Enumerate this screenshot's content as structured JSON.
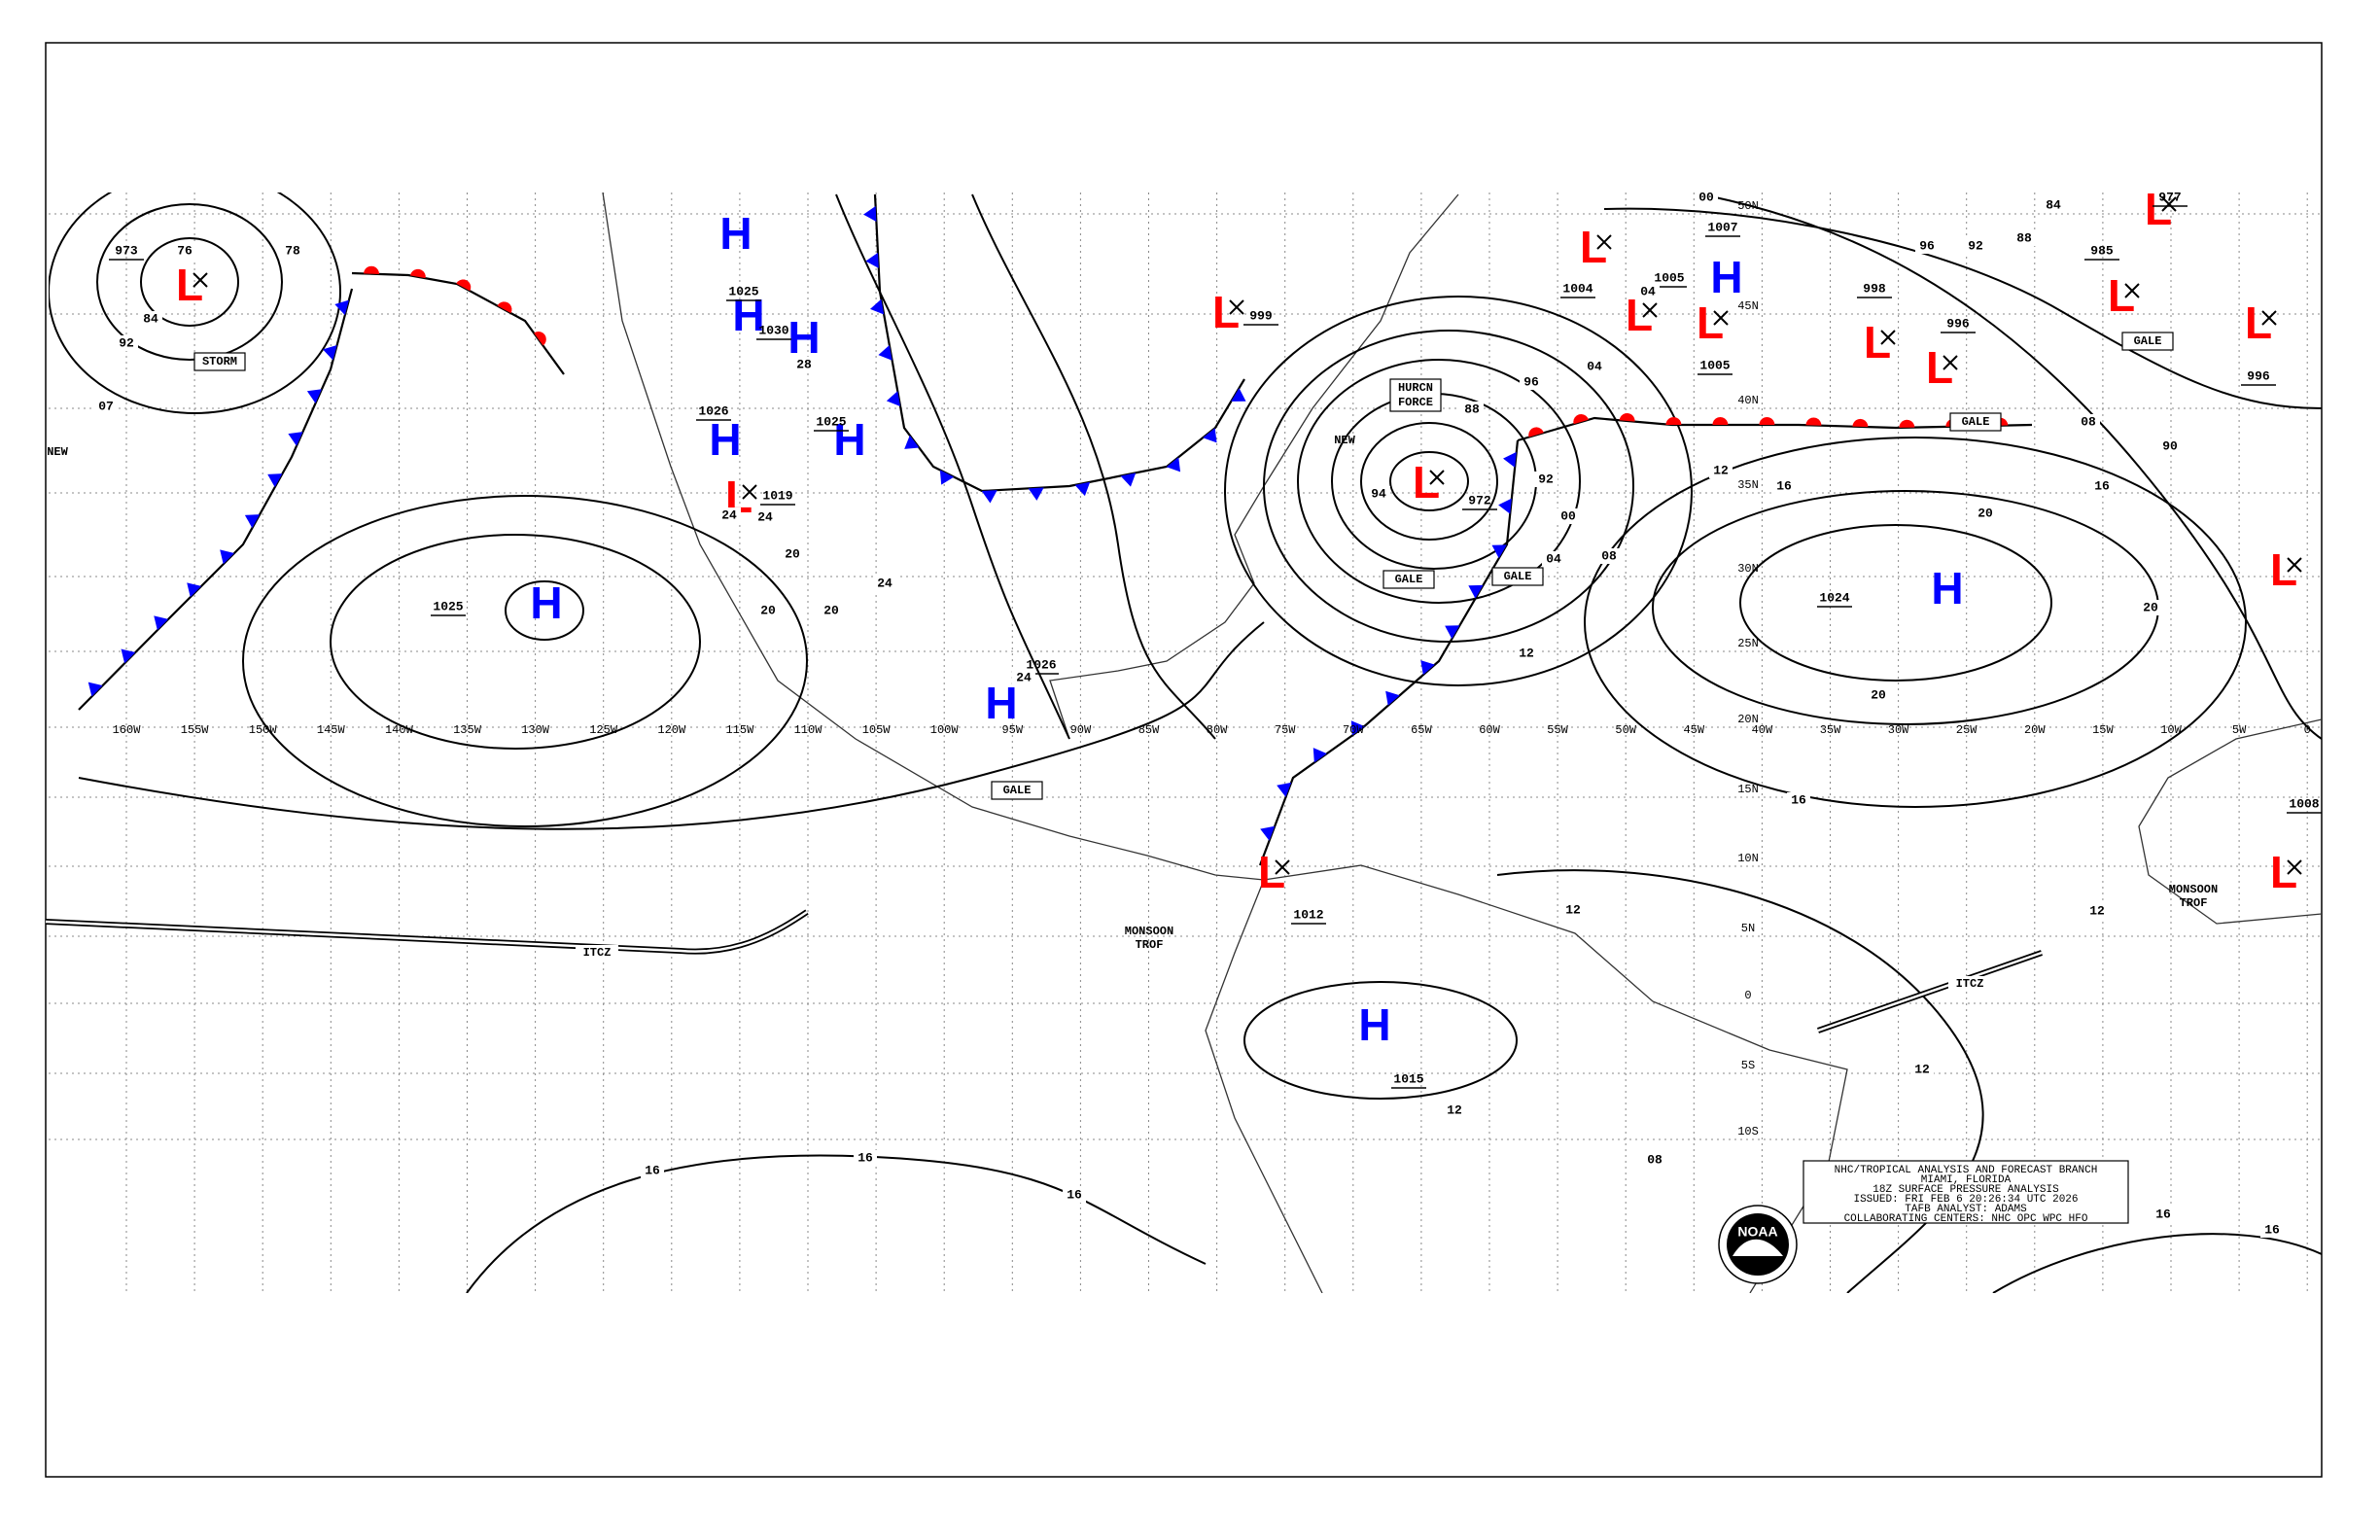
{
  "map": {
    "high_color": "#0000ff",
    "low_color": "#ff0000",
    "lon_labels": [
      "160W",
      "155W",
      "150W",
      "145W",
      "140W",
      "135W",
      "130W",
      "125W",
      "120W",
      "115W",
      "110W",
      "105W",
      "100W",
      "95W",
      "90W",
      "85W",
      "80W",
      "75W",
      "70W",
      "65W",
      "60W",
      "55W",
      "50W",
      "45W",
      "40W",
      "35W",
      "30W",
      "25W",
      "20W",
      "15W",
      "10W",
      "5W",
      "0"
    ],
    "lat_labels": [
      "50N",
      "45N",
      "40N",
      "35N",
      "30N",
      "25N",
      "20N",
      "15N",
      "10N",
      "5N",
      "0",
      "5S",
      "10S"
    ],
    "highs": [
      "H",
      "H",
      "H",
      "H",
      "H",
      "H",
      "H",
      "H",
      "H",
      "H"
    ],
    "lows": [
      "L",
      "L",
      "L",
      "L",
      "L",
      "L",
      "L",
      "L",
      "L",
      "L",
      "L",
      "L",
      "L",
      "L",
      "L"
    ],
    "pressure_labels": [
      "973",
      "1025",
      "1030",
      "1026",
      "1019",
      "1025",
      "1025",
      "1026",
      "999",
      "972",
      "1004",
      "1005",
      "1005",
      "1007",
      "998",
      "996",
      "985",
      "977",
      "996",
      "1024",
      "1008",
      "1012",
      "1015"
    ],
    "isobar_labels": [
      "76",
      "78",
      "84",
      "92",
      "07",
      "28",
      "24",
      "20",
      "20",
      "20",
      "24",
      "88",
      "92",
      "94",
      "96",
      "00",
      "04",
      "08",
      "12",
      "16",
      "20",
      "12",
      "20",
      "16",
      "04",
      "04",
      "00",
      "96",
      "92",
      "88",
      "84",
      "08",
      "16",
      "20",
      "90",
      "12",
      "12",
      "16",
      "16",
      "16",
      "12",
      "08",
      "16",
      "16",
      "12",
      "24",
      "24"
    ],
    "boxed_labels": [
      "STORM",
      "GALE",
      "HURCN",
      "FORCE",
      "GALE",
      "GALE",
      "GALE",
      "GALE"
    ],
    "labels": [
      "NEW",
      "NEW",
      "MONSOON",
      "TROF",
      "MONSOON",
      "TROF",
      "ITCZ",
      "ITCZ"
    ],
    "info_box": [
      "NHC/TROPICAL ANALYSIS AND FORECAST BRANCH",
      "MIAMI, FLORIDA",
      "18Z SURFACE PRESSURE ANALYSIS",
      "ISSUED: FRI FEB 6 20:26:34 UTC 2026",
      "TAFB ANALYST: ADAMS",
      "COLLABORATING CENTERS: NHC OPC WPC HFO"
    ],
    "logo_text": "NOAA"
  }
}
